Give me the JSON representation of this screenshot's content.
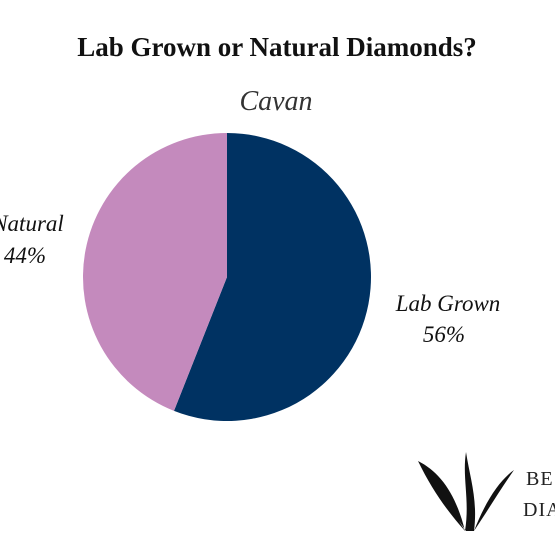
{
  "chart_data": {
    "type": "pie",
    "title": "Lab Grown or Natural Diamonds?",
    "subtitle": "Cavan",
    "slices": [
      {
        "label": "Lab Grown",
        "value": 56,
        "value_label": "56%",
        "color": "#003262"
      },
      {
        "label": "Natural",
        "value": 44,
        "value_label": "44%",
        "color": "#c48abd"
      }
    ],
    "start": "12 o'clock",
    "direction": "clockwise",
    "legend": "none"
  },
  "logo": {
    "line1": "BE",
    "line2": "DIA",
    "color": "#111111"
  }
}
